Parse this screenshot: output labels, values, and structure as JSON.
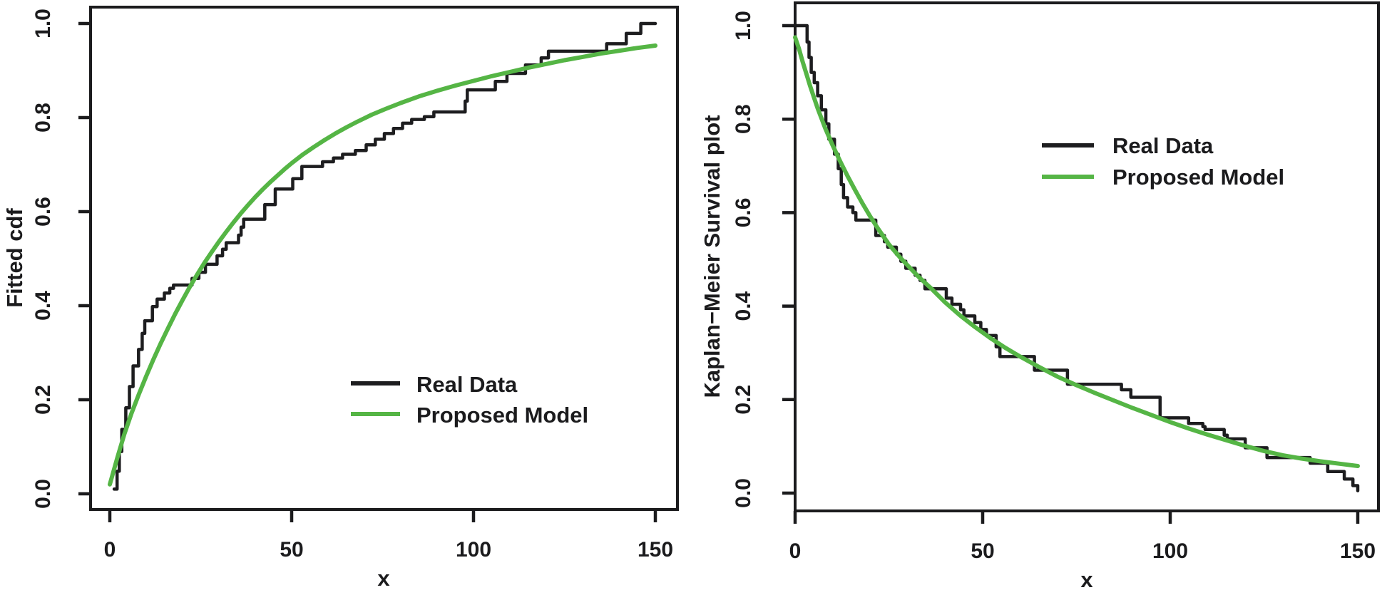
{
  "figure": {
    "background": "#ffffff",
    "text_color": "#1b1b1d",
    "axis_color": "#1b1b1d"
  },
  "chart_data": [
    {
      "type": "line",
      "title": "",
      "xlabel": "x",
      "ylabel": "Fitted cdf",
      "xlim": [
        0,
        150
      ],
      "ylim": [
        0.0,
        1.0
      ],
      "grid": false,
      "x_tick_values": [
        0,
        50,
        100,
        150
      ],
      "x_tick_labels": [
        "0",
        "50",
        "100",
        "150"
      ],
      "y_tick_values": [
        0.0,
        0.2,
        0.4,
        0.6,
        0.8,
        1.0
      ],
      "y_tick_labels": [
        "0.0",
        "0.2",
        "0.4",
        "0.6",
        "0.8",
        "1.0"
      ],
      "legend": {
        "position": "inside-bottom-center-right",
        "entries": [
          {
            "label": "Real Data",
            "color": "#1d1d1f"
          },
          {
            "label": "Proposed Model",
            "color": "#55b545"
          }
        ]
      },
      "series": [
        {
          "name": "Real Data",
          "style": "step",
          "color": "#1d1d1f",
          "points": [
            [
              1.2,
              0.01
            ],
            [
              2.0,
              0.048
            ],
            [
              2.6,
              0.09
            ],
            [
              3.3,
              0.137
            ],
            [
              4.4,
              0.183
            ],
            [
              5.4,
              0.228
            ],
            [
              6.4,
              0.272
            ],
            [
              7.9,
              0.307
            ],
            [
              8.9,
              0.341
            ],
            [
              9.6,
              0.368
            ],
            [
              11.7,
              0.398
            ],
            [
              13.0,
              0.414
            ],
            [
              15.0,
              0.427
            ],
            [
              16.5,
              0.437
            ],
            [
              17.5,
              0.444
            ],
            [
              22.6,
              0.458
            ],
            [
              24.5,
              0.471
            ],
            [
              26.3,
              0.488
            ],
            [
              29.5,
              0.506
            ],
            [
              31.0,
              0.52
            ],
            [
              32.0,
              0.534
            ],
            [
              35.4,
              0.55
            ],
            [
              36.1,
              0.567
            ],
            [
              36.8,
              0.584
            ],
            [
              42.6,
              0.615
            ],
            [
              45.5,
              0.648
            ],
            [
              50.3,
              0.67
            ],
            [
              52.8,
              0.696
            ],
            [
              58.5,
              0.706
            ],
            [
              61.5,
              0.714
            ],
            [
              64.0,
              0.722
            ],
            [
              67.5,
              0.73
            ],
            [
              70.5,
              0.742
            ],
            [
              73.0,
              0.754
            ],
            [
              75.5,
              0.766
            ],
            [
              78.0,
              0.777
            ],
            [
              80.5,
              0.788
            ],
            [
              83.0,
              0.796
            ],
            [
              86.5,
              0.802
            ],
            [
              89.1,
              0.812
            ],
            [
              97.7,
              0.835
            ],
            [
              98.3,
              0.859
            ],
            [
              106.0,
              0.877
            ],
            [
              109.2,
              0.894
            ],
            [
              114.3,
              0.912
            ],
            [
              118.6,
              0.927
            ],
            [
              120.6,
              0.941
            ],
            [
              136.6,
              0.957
            ],
            [
              142.0,
              0.979
            ],
            [
              146.0,
              1.0
            ],
            [
              150.0,
              1.0
            ]
          ]
        },
        {
          "name": "Proposed Model",
          "style": "smooth",
          "color": "#55b545",
          "points": [
            [
              0,
              0.02
            ],
            [
              2,
              0.075
            ],
            [
              4,
              0.127
            ],
            [
              6,
              0.172
            ],
            [
              8,
              0.212
            ],
            [
              10,
              0.25
            ],
            [
              12,
              0.286
            ],
            [
              14,
              0.32
            ],
            [
              16,
              0.352
            ],
            [
              18,
              0.383
            ],
            [
              20,
              0.412
            ],
            [
              22,
              0.44
            ],
            [
              24,
              0.466
            ],
            [
              26,
              0.491
            ],
            [
              28,
              0.514
            ],
            [
              30,
              0.536
            ],
            [
              32,
              0.557
            ],
            [
              34,
              0.577
            ],
            [
              36,
              0.596
            ],
            [
              38,
              0.614
            ],
            [
              40,
              0.631
            ],
            [
              42,
              0.647
            ],
            [
              44,
              0.662
            ],
            [
              46,
              0.676
            ],
            [
              48,
              0.69
            ],
            [
              50,
              0.703
            ],
            [
              53,
              0.721
            ],
            [
              56,
              0.737
            ],
            [
              59,
              0.752
            ],
            [
              62,
              0.766
            ],
            [
              65,
              0.779
            ],
            [
              68,
              0.791
            ],
            [
              72,
              0.806
            ],
            [
              76,
              0.819
            ],
            [
              80,
              0.831
            ],
            [
              85,
              0.845
            ],
            [
              90,
              0.857
            ],
            [
              95,
              0.868
            ],
            [
              100,
              0.878
            ],
            [
              105,
              0.888
            ],
            [
              110,
              0.897
            ],
            [
              115,
              0.906
            ],
            [
              120,
              0.914
            ],
            [
              125,
              0.922
            ],
            [
              130,
              0.929
            ],
            [
              135,
              0.936
            ],
            [
              140,
              0.942
            ],
            [
              145,
              0.948
            ],
            [
              150,
              0.953
            ]
          ]
        }
      ]
    },
    {
      "type": "line",
      "title": "",
      "xlabel": "x",
      "ylabel": "Kaplan−Meier Survival plot",
      "xlim": [
        0,
        150
      ],
      "ylim": [
        0.0,
        1.0
      ],
      "grid": false,
      "x_tick_values": [
        0,
        50,
        100,
        150
      ],
      "x_tick_labels": [
        "0",
        "50",
        "100",
        "150"
      ],
      "y_tick_values": [
        0.0,
        0.2,
        0.4,
        0.6,
        0.8,
        1.0
      ],
      "y_tick_labels": [
        "0.0",
        "0.2",
        "0.4",
        "0.6",
        "0.8",
        "1.0"
      ],
      "legend": {
        "position": "inside-top-right",
        "entries": [
          {
            "label": "Real Data",
            "color": "#1d1d1f"
          },
          {
            "label": "Proposed Model",
            "color": "#55b545"
          }
        ]
      },
      "series": [
        {
          "name": "Real Data",
          "style": "step",
          "color": "#1d1d1f",
          "points": [
            [
              0,
              1.0
            ],
            [
              3.2,
              0.965
            ],
            [
              3.7,
              0.932
            ],
            [
              4.3,
              0.9
            ],
            [
              5.1,
              0.878
            ],
            [
              6.0,
              0.85
            ],
            [
              7.0,
              0.82
            ],
            [
              8.2,
              0.79
            ],
            [
              9.0,
              0.757
            ],
            [
              10.5,
              0.725
            ],
            [
              11.5,
              0.694
            ],
            [
              12.3,
              0.66
            ],
            [
              12.9,
              0.632
            ],
            [
              14.0,
              0.612
            ],
            [
              15.4,
              0.6
            ],
            [
              16.2,
              0.584
            ],
            [
              21.5,
              0.551
            ],
            [
              23.8,
              0.538
            ],
            [
              24.7,
              0.526
            ],
            [
              27.0,
              0.511
            ],
            [
              28.2,
              0.496
            ],
            [
              29.5,
              0.481
            ],
            [
              32.0,
              0.466
            ],
            [
              33.3,
              0.455
            ],
            [
              34.6,
              0.437
            ],
            [
              40.3,
              0.417
            ],
            [
              41.8,
              0.404
            ],
            [
              44.1,
              0.392
            ],
            [
              45.0,
              0.379
            ],
            [
              47.9,
              0.365
            ],
            [
              49.5,
              0.35
            ],
            [
              51.0,
              0.337
            ],
            [
              53.6,
              0.313
            ],
            [
              54.6,
              0.292
            ],
            [
              63.8,
              0.263
            ],
            [
              72.6,
              0.233
            ],
            [
              87.0,
              0.221
            ],
            [
              89.5,
              0.205
            ],
            [
              97.3,
              0.161
            ],
            [
              104.9,
              0.149
            ],
            [
              108.7,
              0.142
            ],
            [
              109.3,
              0.136
            ],
            [
              114.4,
              0.124
            ],
            [
              115.2,
              0.116
            ],
            [
              120.0,
              0.097
            ],
            [
              125.8,
              0.076
            ],
            [
              137.3,
              0.064
            ],
            [
              142.0,
              0.046
            ],
            [
              146.4,
              0.03
            ],
            [
              148.7,
              0.016
            ],
            [
              150.0,
              0.005
            ]
          ]
        },
        {
          "name": "Proposed Model",
          "style": "smooth",
          "color": "#55b545",
          "points": [
            [
              0,
              0.975
            ],
            [
              1,
              0.951
            ],
            [
              2,
              0.923
            ],
            [
              3,
              0.897
            ],
            [
              4,
              0.871
            ],
            [
              5,
              0.847
            ],
            [
              6,
              0.823
            ],
            [
              8,
              0.781
            ],
            [
              10,
              0.744
            ],
            [
              12,
              0.71
            ],
            [
              14,
              0.678
            ],
            [
              16,
              0.648
            ],
            [
              18,
              0.619
            ],
            [
              20,
              0.592
            ],
            [
              22,
              0.567
            ],
            [
              25,
              0.532
            ],
            [
              28,
              0.504
            ],
            [
              30,
              0.487
            ],
            [
              33,
              0.462
            ],
            [
              36,
              0.44
            ],
            [
              40,
              0.408
            ],
            [
              44,
              0.38
            ],
            [
              48,
              0.355
            ],
            [
              52,
              0.332
            ],
            [
              56,
              0.311
            ],
            [
              60,
              0.292
            ],
            [
              65,
              0.27
            ],
            [
              70,
              0.249
            ],
            [
              75,
              0.231
            ],
            [
              80,
              0.214
            ],
            [
              85,
              0.198
            ],
            [
              90,
              0.182
            ],
            [
              95,
              0.167
            ],
            [
              100,
              0.152
            ],
            [
              105,
              0.138
            ],
            [
              110,
              0.125
            ],
            [
              115,
              0.113
            ],
            [
              120,
              0.101
            ],
            [
              125,
              0.09
            ],
            [
              130,
              0.081
            ],
            [
              135,
              0.074
            ],
            [
              140,
              0.068
            ],
            [
              145,
              0.063
            ],
            [
              150,
              0.058
            ]
          ]
        }
      ]
    }
  ]
}
